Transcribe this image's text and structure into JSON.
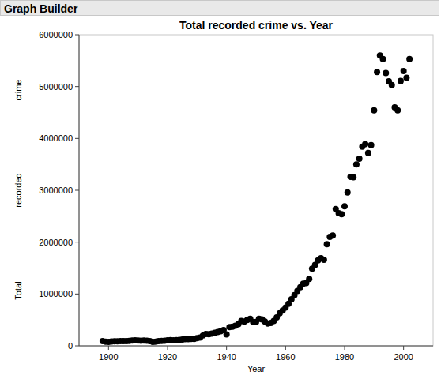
{
  "header": {
    "title": "Graph Builder"
  },
  "chart_data": {
    "type": "scatter",
    "title": "Total recorded crime vs. Year",
    "x_label": "Year",
    "y_label": "Total recorded crime",
    "x": [
      1898,
      1899,
      1900,
      1901,
      1902,
      1903,
      1904,
      1905,
      1906,
      1907,
      1908,
      1909,
      1910,
      1911,
      1912,
      1913,
      1914,
      1915,
      1916,
      1917,
      1918,
      1919,
      1920,
      1921,
      1922,
      1923,
      1924,
      1925,
      1926,
      1927,
      1928,
      1929,
      1930,
      1931,
      1932,
      1933,
      1934,
      1935,
      1936,
      1937,
      1938,
      1939,
      1940,
      1941,
      1942,
      1943,
      1944,
      1945,
      1946,
      1947,
      1948,
      1949,
      1950,
      1951,
      1952,
      1953,
      1954,
      1955,
      1956,
      1957,
      1958,
      1959,
      1960,
      1961,
      1962,
      1963,
      1964,
      1965,
      1966,
      1967,
      1968,
      1969,
      1970,
      1971,
      1972,
      1973,
      1974,
      1975,
      1976,
      1977,
      1978,
      1979,
      1980,
      1981,
      1982,
      1983,
      1984,
      1985,
      1986,
      1987,
      1988,
      1989,
      1990,
      1991,
      1992,
      1993,
      1994,
      1995,
      1996,
      1997,
      1998,
      1999,
      2000,
      2001,
      2002
    ],
    "values": [
      90000,
      80000,
      78000,
      82000,
      86000,
      88000,
      92000,
      90000,
      92000,
      95000,
      103000,
      106000,
      103000,
      100000,
      103000,
      98000,
      90000,
      77000,
      80000,
      90000,
      95000,
      100000,
      107000,
      110000,
      108000,
      110000,
      113000,
      120000,
      128000,
      130000,
      135000,
      135000,
      148000,
      160000,
      200000,
      230000,
      225000,
      235000,
      250000,
      266000,
      283000,
      303000,
      220000,
      360000,
      370000,
      390000,
      420000,
      480000,
      470000,
      500000,
      520000,
      460000,
      460000,
      520000,
      510000,
      470000,
      430000,
      440000,
      480000,
      550000,
      630000,
      680000,
      740000,
      810000,
      900000,
      980000,
      1060000,
      1130000,
      1200000,
      1210000,
      1290000,
      1490000,
      1560000,
      1650000,
      1690000,
      1660000,
      1960000,
      2100000,
      2130000,
      2640000,
      2560000,
      2540000,
      2690000,
      2960000,
      3260000,
      3250000,
      3500000,
      3610000,
      3840000,
      3890000,
      3720000,
      3870000,
      4540000,
      5280000,
      5600000,
      5530000,
      5260000,
      5100000,
      5030000,
      4600000,
      4540000,
      5110000,
      5300000,
      5170000,
      5530000
    ],
    "color": "#000000",
    "marker": "circle",
    "xlim": [
      1890,
      2010
    ],
    "xticks": [
      1900,
      1920,
      1940,
      1960,
      1980,
      2000
    ],
    "ylim": [
      0,
      6000000
    ],
    "yticks": [
      0,
      1000000,
      2000000,
      3000000,
      4000000,
      5000000,
      6000000
    ],
    "grid": false
  }
}
